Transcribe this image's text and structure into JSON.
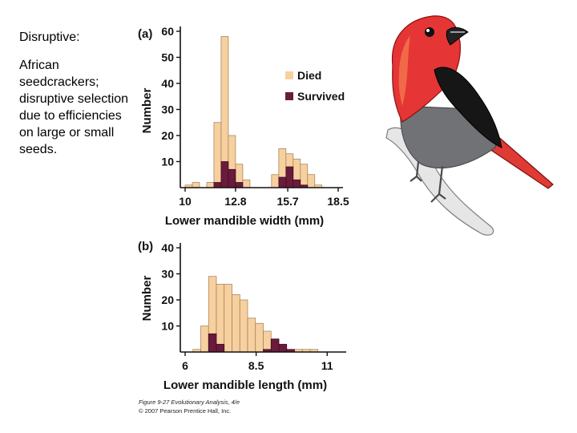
{
  "slide": {
    "heading": "Disruptive:",
    "body": "African seedcrackers; disruptive selection due to efficiencies on large or small seeds."
  },
  "colors": {
    "died": "#f7d0a0",
    "survived": "#6a1a3a",
    "bar_stroke": "#a07a50",
    "axis": "#111111"
  },
  "chart_data": [
    {
      "type": "bar",
      "panel_label": "(a)",
      "xlabel": "Lower mandible width (mm)",
      "ylabel": "Number",
      "ylim": [
        0,
        60
      ],
      "yticks": [
        10,
        20,
        30,
        40,
        50,
        60
      ],
      "xlim": [
        10,
        18.5
      ],
      "xticks": [
        "10",
        "12.8",
        "15.7",
        "18.5"
      ],
      "xtick_values": [
        10,
        12.8,
        15.7,
        18.5
      ],
      "bin_start": 10,
      "bin_width": 0.4,
      "legend": {
        "position": "right",
        "entries": [
          "Died",
          "Survived"
        ]
      },
      "series": [
        {
          "name": "Died",
          "values": [
            1,
            2,
            0,
            2,
            25,
            58,
            20,
            9,
            3,
            0,
            0,
            0,
            5,
            15,
            13,
            11,
            9,
            5,
            1,
            0,
            0
          ]
        },
        {
          "name": "Survived",
          "values": [
            0,
            0,
            0,
            0,
            2,
            10,
            7,
            2,
            0,
            0,
            0,
            0,
            0,
            4,
            8,
            3,
            1,
            0,
            0,
            0,
            0
          ]
        }
      ]
    },
    {
      "type": "bar",
      "panel_label": "(b)",
      "xlabel": "Lower mandible length (mm)",
      "ylabel": "Number",
      "ylim": [
        0,
        40
      ],
      "yticks": [
        10,
        20,
        30,
        40
      ],
      "xlim": [
        6,
        11.5
      ],
      "xticks": [
        "6",
        "8.5",
        "11"
      ],
      "xtick_values": [
        6,
        8.5,
        11
      ],
      "bin_start": 6,
      "bin_width": 0.275,
      "series": [
        {
          "name": "Died",
          "values": [
            0,
            1,
            10,
            29,
            26,
            26,
            22,
            20,
            13,
            11,
            8,
            5,
            2,
            1,
            1,
            1,
            1,
            0
          ]
        },
        {
          "name": "Survived",
          "values": [
            0,
            0,
            0,
            7,
            3,
            0,
            0,
            0,
            0,
            0,
            1,
            5,
            3,
            1,
            0,
            0,
            0,
            0
          ]
        }
      ]
    }
  ],
  "credit": {
    "line1": "Figure 9-27  Evolutionary Analysis, 4/e",
    "line2": "© 2007 Pearson Prentice Hall, Inc."
  }
}
